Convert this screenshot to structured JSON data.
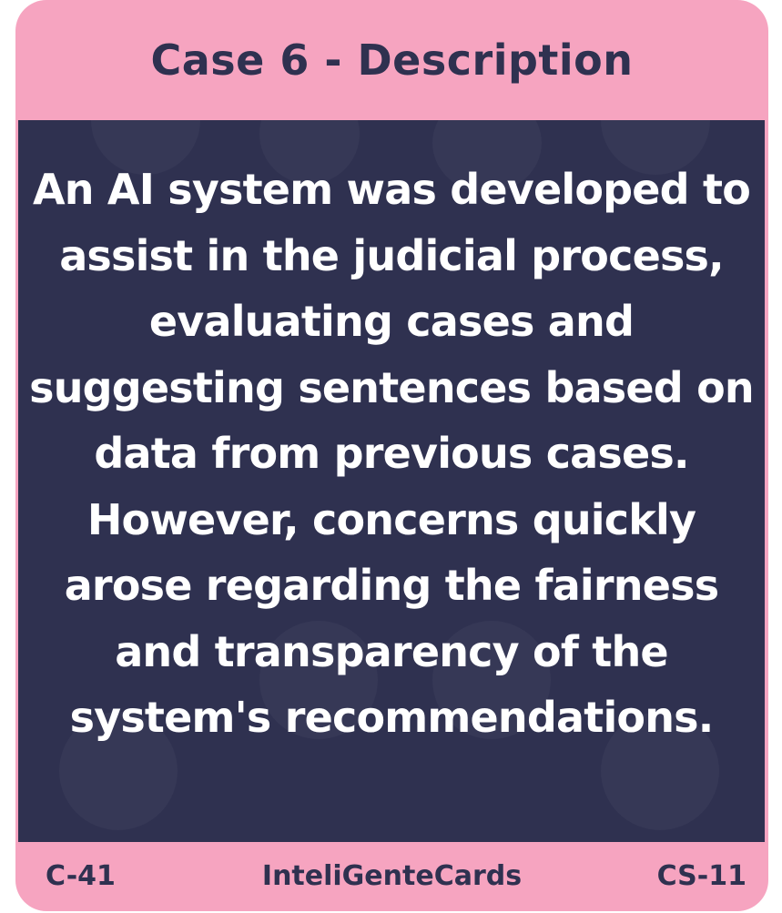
{
  "card": {
    "title": "Case 6 - Description",
    "description": "An AI system was developed to assist in the judicial process, evaluating cases and suggesting sentences based on data from previous cases. However, concerns quickly arose regarding the fairness and transparency of the system's recommendations.",
    "footer": {
      "left_code": "C-41",
      "brand": "InteliGenteCards",
      "right_code": "CS-11"
    }
  },
  "colors": {
    "card_pink": "#f6a4c0",
    "panel_navy": "#2f3150",
    "text_white": "#ffffff"
  }
}
